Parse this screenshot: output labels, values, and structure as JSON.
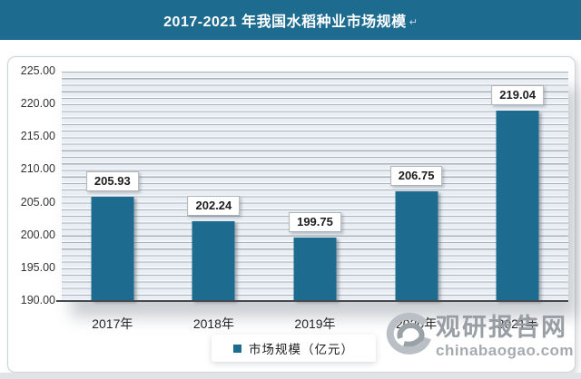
{
  "header": {
    "title": "2017-2021 年我国水稻种业市场规模",
    "paragraph_mark": "↵",
    "bg_color": "#1e6b90"
  },
  "chart_data": {
    "type": "bar",
    "title": "2017-2021 年我国水稻种业市场规模",
    "categories": [
      "2017年",
      "2018年",
      "2019年",
      "2020年",
      "2021年"
    ],
    "series": [
      {
        "name": "市场规模（亿元）",
        "values": [
          205.93,
          202.24,
          199.75,
          206.75,
          219.04
        ]
      }
    ],
    "value_labels": [
      "205.93",
      "202.24",
      "199.75",
      "206.75",
      "219.04"
    ],
    "xlabel": "",
    "ylabel": "",
    "ylim": [
      190,
      225
    ],
    "y_major_unit": 5,
    "y_minor_unit": 1,
    "y_axis_ticks": [
      "225.00",
      "220.00",
      "215.00",
      "210.00",
      "205.00",
      "200.00",
      "195.00",
      "190.00"
    ],
    "grid": true,
    "legend_position": "bottom",
    "bar_color": "#1e6b90"
  },
  "legend": {
    "label": "市场规模（亿元）",
    "marker_color": "#1e6b90"
  },
  "watermark": {
    "logo": "swirl-logo",
    "name_cn": "观研报告网",
    "domain": "chinabaogao.com"
  }
}
